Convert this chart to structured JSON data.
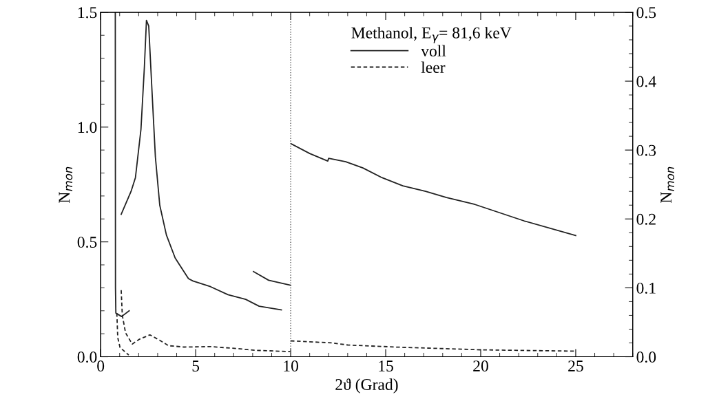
{
  "chart_data": {
    "type": "line",
    "xlabel": "2ϑ (Grad)",
    "ylabel": "N$_{mon}$",
    "y2label": "N$_{mon}$",
    "legend_title": "Methanol, E$_{γ}$= 81,6 keV",
    "xlim": [
      0,
      28
    ],
    "xticks": [
      0,
      5,
      10,
      15,
      20,
      25
    ],
    "ylim": [
      0,
      1.5
    ],
    "yticks": [
      {
        "value": 0,
        "label": "0.0"
      },
      {
        "value": 0.5,
        "label": "0.5"
      },
      {
        "value": 1.0,
        "label": "1.0"
      },
      {
        "value": 1.5,
        "label": "1.5"
      }
    ],
    "y2lim": [
      0,
      0.5
    ],
    "y2ticks": [
      {
        "value": 0,
        "label": "0.0"
      },
      0.1,
      0.2,
      0.3,
      0.4,
      0.5
    ],
    "legend": "top right",
    "grid": false,
    "marker": "none",
    "ref_lines": [
      {
        "axis": "x",
        "value": 10,
        "line_style": "dotted",
        "color": "#555555"
      }
    ],
    "series": [
      {
        "name": "voll",
        "color": "#222222",
        "line_style": "solid",
        "x": [
          0.77,
          0.78,
          0.8,
          1.1,
          1.5
        ],
        "values": [
          1.5,
          0.3,
          0.19,
          0.175,
          0.2
        ]
      },
      {
        "color": "#222222",
        "line_style": "solid",
        "x": [
          1.08,
          1.6,
          1.83,
          2.12,
          2.3,
          2.41,
          2.53,
          2.7,
          2.88,
          3.11,
          3.46,
          3.92,
          4.62,
          4.85,
          5.78,
          6.7,
          7.63,
          8.34,
          9.51
        ],
        "values": [
          0.62,
          0.72,
          0.78,
          0.99,
          1.26,
          1.465,
          1.44,
          1.16,
          0.87,
          0.66,
          0.53,
          0.43,
          0.34,
          0.33,
          0.305,
          0.27,
          0.25,
          0.22,
          0.204
        ]
      },
      {
        "color": "#222222",
        "line_style": "solid",
        "x": [
          8.04,
          8.84,
          10.0
        ],
        "values": [
          0.371,
          0.333,
          0.311
        ]
      },
      {
        "color": "#222222",
        "line_style": "solid",
        "axis": "y2",
        "x": [
          10.03,
          11.0,
          11.95,
          12.0,
          12.9,
          13.8,
          14.8,
          15.9,
          17.1,
          18.2,
          19.7,
          21.0,
          22.3,
          25.0
        ],
        "values": [
          0.309,
          0.295,
          0.284,
          0.288,
          0.283,
          0.274,
          0.26,
          0.248,
          0.24,
          0.231,
          0.221,
          0.209,
          0.197,
          0.176
        ]
      },
      {
        "name": "leer",
        "color": "#222222",
        "line_style": "dashed",
        "x": [
          0.85,
          0.9,
          1.02,
          1.48
        ],
        "values": [
          0.19,
          0.083,
          0.04,
          0.007
        ]
      },
      {
        "color": "#222222",
        "line_style": "dashed",
        "x": [
          1.08,
          1.14,
          1.31,
          1.66,
          2.06,
          2.59,
          3.1,
          3.57,
          4.39,
          5.78,
          6.94,
          7.73,
          8.1,
          9.98
        ],
        "values": [
          0.29,
          0.18,
          0.104,
          0.055,
          0.077,
          0.095,
          0.072,
          0.048,
          0.042,
          0.044,
          0.037,
          0.031,
          0.028,
          0.022
        ]
      },
      {
        "color": "#222222",
        "line_style": "dashed",
        "axis": "y2",
        "x": [
          10.0,
          12.2,
          13.0,
          15.5,
          20.0,
          25.0
        ],
        "values": [
          0.023,
          0.02,
          0.017,
          0.014,
          0.01,
          0.008
        ]
      }
    ]
  }
}
